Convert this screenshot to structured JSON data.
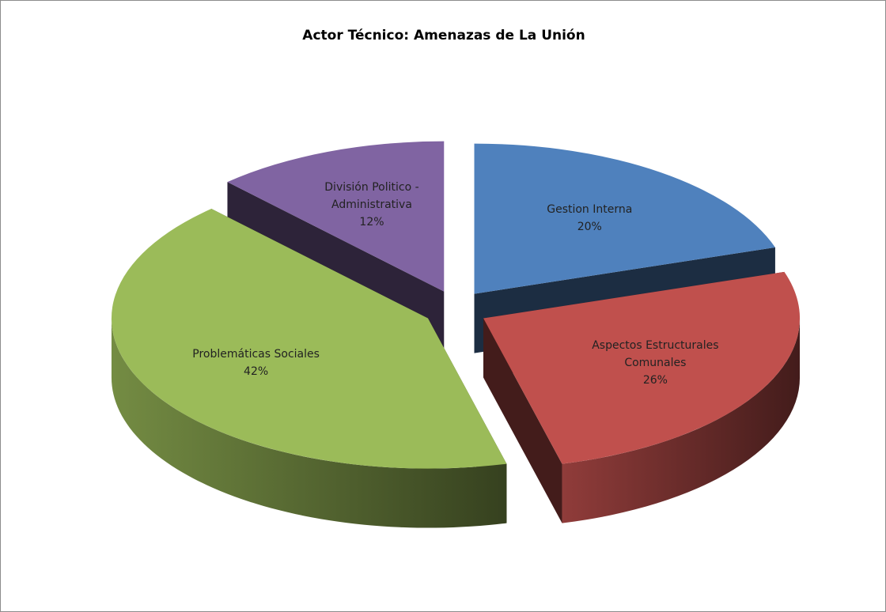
{
  "chart_data": {
    "type": "pie",
    "title": "Actor Técnico: Amenazas de La Unión",
    "categories": [
      "Gestion Interna",
      "Aspectos Estructurales Comunales",
      "Problemáticas Sociales",
      "División Politico - Administrativa"
    ],
    "values": [
      20,
      26,
      42,
      12
    ],
    "value_labels": [
      "20%",
      "26%",
      "42%",
      "12%"
    ],
    "colors": [
      "#4f81bd",
      "#c0504d",
      "#9bbb59",
      "#8064a2"
    ]
  }
}
